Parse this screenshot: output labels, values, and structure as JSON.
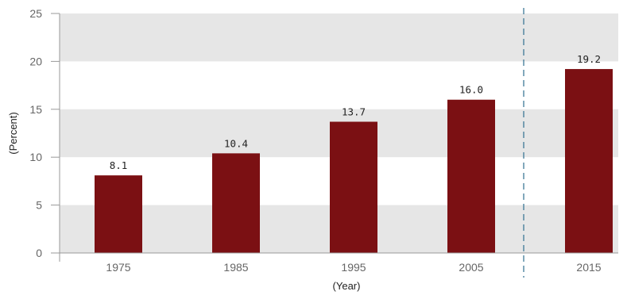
{
  "chart_data": {
    "type": "bar",
    "categories": [
      "1975",
      "1985",
      "1995",
      "2005",
      "2015"
    ],
    "values": [
      8.1,
      10.4,
      13.7,
      16.0,
      19.2
    ],
    "value_labels": [
      "8.1",
      "10.4",
      "13.7",
      "16.0",
      "19.2"
    ],
    "title": "",
    "xlabel": "(Year)",
    "ylabel": "(Percent)",
    "ylim": [
      0,
      25
    ],
    "yticks": [
      0,
      5,
      10,
      15,
      20,
      25
    ],
    "grid": "alternating horizontal bands",
    "legend": "none",
    "divider_after_category": "2005",
    "colors": {
      "bar": "#7b1013",
      "band": "#e6e6e6",
      "divider": "#2f6f8f",
      "axis": "#999999"
    }
  }
}
